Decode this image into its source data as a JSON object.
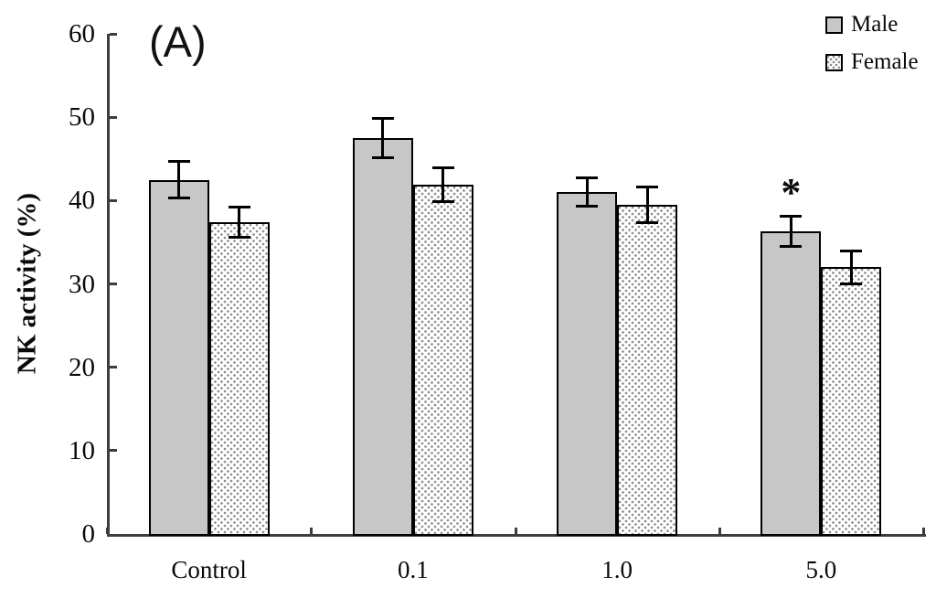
{
  "panel_label": "(A)",
  "legend": {
    "position": "top-right",
    "items": [
      {
        "label": "Male",
        "swatch": "solid-gray",
        "swatch_icon": "gray-square-icon"
      },
      {
        "label": "Female",
        "swatch": "dotted",
        "swatch_icon": "dotted-square-icon"
      }
    ]
  },
  "chart_data": {
    "type": "bar",
    "title": "",
    "panel": "(A)",
    "categories": [
      "Control",
      "0.1",
      "1.0",
      "5.0"
    ],
    "series": [
      {
        "name": "Male",
        "fill": "solid-gray",
        "values": [
          42.5,
          47.5,
          41.0,
          36.3
        ],
        "errors": [
          2.2,
          2.4,
          1.7,
          1.8
        ]
      },
      {
        "name": "Female",
        "fill": "dotted",
        "values": [
          37.4,
          41.9,
          39.5,
          32.0
        ],
        "errors": [
          1.8,
          2.0,
          2.1,
          2.0
        ]
      }
    ],
    "xlabel": "",
    "ylabel": "NK activity (%)",
    "ylim": [
      0,
      60
    ],
    "yticks": [
      0,
      10,
      20,
      30,
      40,
      50,
      60
    ],
    "grid": false,
    "legend_position": "top-right",
    "error_bars": true,
    "annotations": [
      {
        "text": "*",
        "series": "Male",
        "category": "5.0",
        "meaning": "significant difference marker"
      }
    ]
  },
  "colors": {
    "background": "#ffffff",
    "male_fill": "#c7c7c7",
    "female_dot": "#8f8f8f",
    "bar_border": "#000000",
    "axis": "#3d3d3d",
    "text": "#0a0a0a"
  }
}
